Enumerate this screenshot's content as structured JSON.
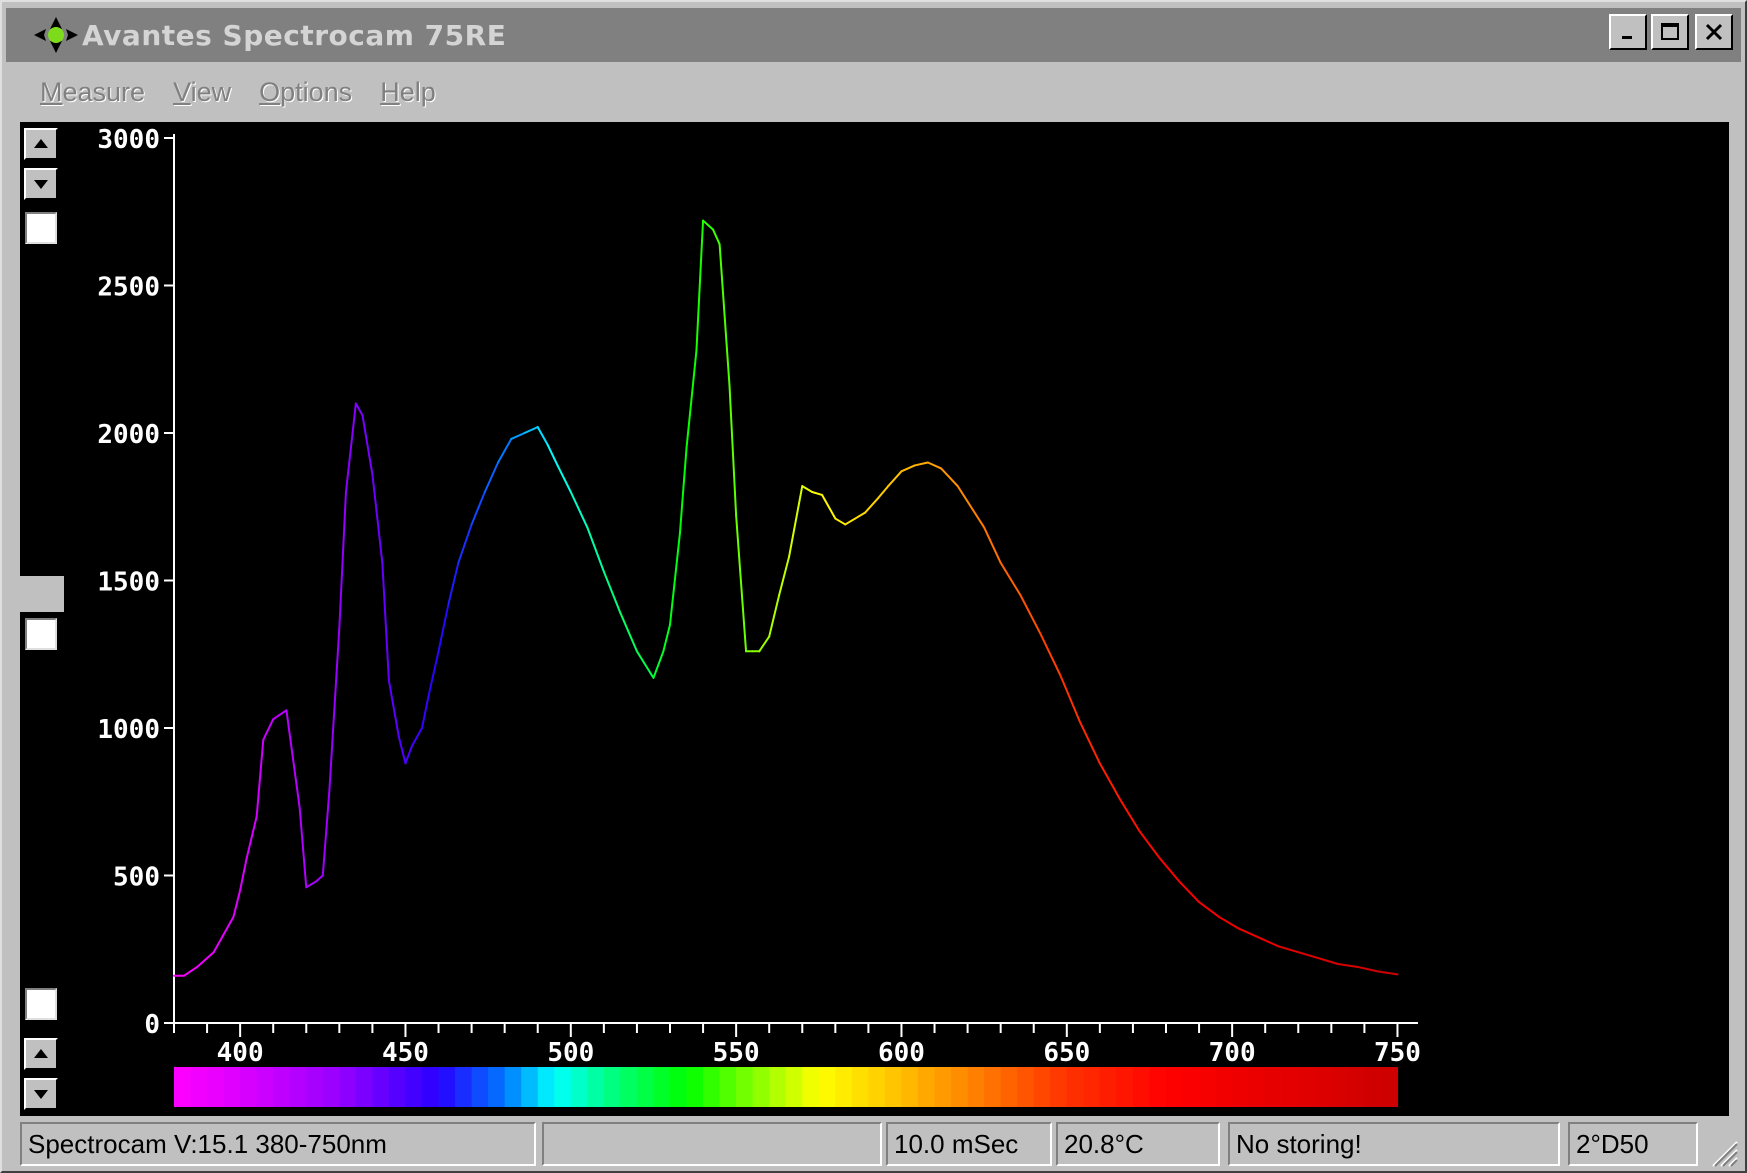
{
  "window": {
    "title": "Avantes Spectrocam 75RE",
    "icon": "spectrocam-app-icon",
    "controls": [
      "minimize-icon",
      "maximize-icon",
      "close-icon"
    ]
  },
  "menu": {
    "items": [
      {
        "label": "Measure",
        "accel": "M"
      },
      {
        "label": "View",
        "accel": "V"
      },
      {
        "label": "Options",
        "accel": "O"
      },
      {
        "label": "Help",
        "accel": "H"
      }
    ]
  },
  "side_controls": {
    "icons": [
      "scroll-up-arrow-icon",
      "scroll-down-arrow-icon",
      "checkbox",
      "checkbox",
      "checkbox",
      "scroll-up-arrow-icon",
      "scroll-down-arrow-icon"
    ]
  },
  "chart_data": {
    "type": "line",
    "title": "",
    "xlabel": "",
    "ylabel": "",
    "xlim": [
      380,
      755
    ],
    "ylim": [
      0,
      3000
    ],
    "x_ticks": [
      400,
      450,
      500,
      550,
      600,
      650,
      700,
      750
    ],
    "y_ticks": [
      0,
      500,
      1000,
      1500,
      2000,
      2500,
      3000
    ],
    "x_tick_labels": [
      "400",
      "450",
      "500",
      "550",
      "600",
      "650",
      "700",
      "750"
    ],
    "y_tick_labels": [
      "0",
      "500",
      "1000",
      "1500",
      "2000",
      "2500",
      "3000"
    ],
    "grid": false,
    "line_color": "wavelength-spectrum",
    "color_bar": true,
    "series": [
      {
        "x": [
          380,
          383,
          387,
          392,
          395,
          398,
          400,
          402,
          405,
          407,
          410,
          414,
          418,
          420,
          423,
          425,
          427,
          430,
          432,
          435,
          437,
          440,
          443,
          445,
          448,
          450,
          452,
          455,
          457,
          460,
          463,
          466,
          470,
          474,
          478,
          482,
          486,
          490,
          493,
          496,
          500,
          505,
          510,
          515,
          520,
          525,
          528,
          530,
          533,
          535,
          538,
          540,
          543,
          545,
          548,
          550,
          553,
          555,
          557,
          560,
          563,
          566,
          570,
          573,
          576,
          580,
          583,
          586,
          589,
          593,
          596,
          600,
          604,
          608,
          612,
          617,
          621,
          625,
          630,
          636,
          642,
          648,
          654,
          660,
          666,
          672,
          678,
          684,
          690,
          696,
          702,
          708,
          714,
          720,
          726,
          732,
          738,
          744,
          750
        ],
        "y": [
          160,
          160,
          190,
          240,
          300,
          360,
          450,
          560,
          700,
          960,
          1030,
          1060,
          730,
          460,
          480,
          500,
          790,
          1340,
          1800,
          2100,
          2060,
          1860,
          1560,
          1160,
          970,
          880,
          940,
          1000,
          1110,
          1260,
          1420,
          1560,
          1690,
          1800,
          1900,
          1980,
          2000,
          2020,
          1960,
          1890,
          1800,
          1680,
          1530,
          1390,
          1260,
          1170,
          1260,
          1350,
          1660,
          1950,
          2280,
          2720,
          2690,
          2640,
          2160,
          1720,
          1260,
          1260,
          1260,
          1310,
          1450,
          1580,
          1820,
          1800,
          1790,
          1710,
          1690,
          1710,
          1730,
          1780,
          1820,
          1870,
          1890,
          1900,
          1880,
          1820,
          1750,
          1680,
          1560,
          1450,
          1320,
          1180,
          1020,
          880,
          760,
          650,
          560,
          480,
          410,
          360,
          320,
          290,
          260,
          240,
          220,
          200,
          190,
          175,
          165
        ]
      }
    ]
  },
  "status": {
    "version": "Spectrocam V:15.1 380-750nm",
    "empty": "",
    "integration": "10.0 mSec",
    "temperature": "20.8°C",
    "storing": "No storing!",
    "illuminant": "2°D50"
  }
}
